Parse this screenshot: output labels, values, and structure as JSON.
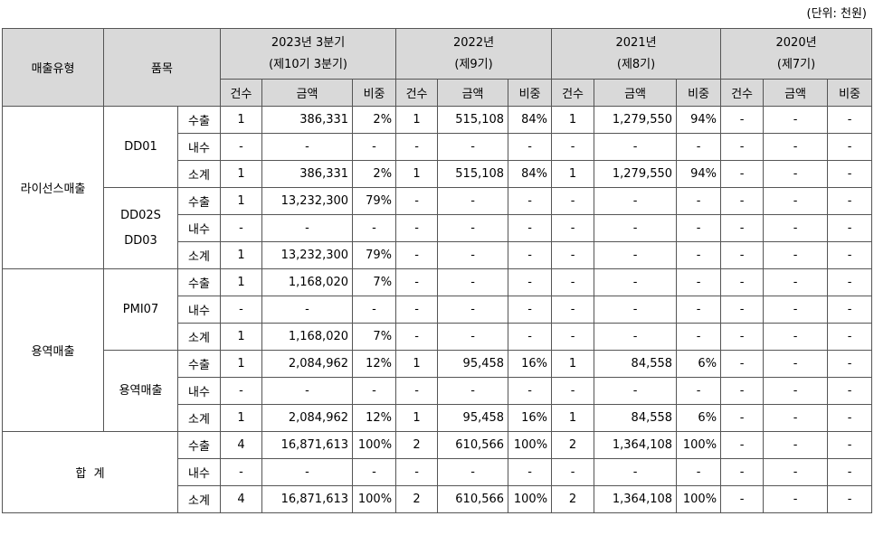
{
  "unit_label": "(단위: 천원)",
  "headers": {
    "sales_type": "매출유형",
    "product": "품목",
    "periods": [
      {
        "year": "2023년 3분기",
        "term": "(제10기 3분기)"
      },
      {
        "year": "2022년",
        "term": "(제9기)"
      },
      {
        "year": "2021년",
        "term": "(제8기)"
      },
      {
        "year": "2020년",
        "term": "(제7기)"
      }
    ],
    "sub": [
      "건수",
      "금액",
      "비중"
    ]
  },
  "groups": [
    {
      "type": "라이선스매출",
      "products": [
        {
          "name": [
            "DD01"
          ],
          "rows": [
            {
              "kind": "수출",
              "vals": [
                "1",
                "386,331",
                "2%",
                "1",
                "515,108",
                "84%",
                "1",
                "1,279,550",
                "94%",
                "-",
                "-",
                "-"
              ]
            },
            {
              "kind": "내수",
              "vals": [
                "-",
                "-",
                "-",
                "-",
                "-",
                "-",
                "-",
                "-",
                "-",
                "-",
                "-",
                "-"
              ]
            },
            {
              "kind": "소계",
              "vals": [
                "1",
                "386,331",
                "2%",
                "1",
                "515,108",
                "84%",
                "1",
                "1,279,550",
                "94%",
                "-",
                "-",
                "-"
              ]
            }
          ]
        },
        {
          "name": [
            "DD02S",
            "DD03"
          ],
          "rows": [
            {
              "kind": "수출",
              "vals": [
                "1",
                "13,232,300",
                "79%",
                "-",
                "-",
                "-",
                "-",
                "-",
                "-",
                "-",
                "-",
                "-"
              ]
            },
            {
              "kind": "내수",
              "vals": [
                "-",
                "-",
                "-",
                "-",
                "-",
                "-",
                "-",
                "-",
                "-",
                "-",
                "-",
                "-"
              ]
            },
            {
              "kind": "소계",
              "vals": [
                "1",
                "13,232,300",
                "79%",
                "-",
                "-",
                "-",
                "-",
                "-",
                "-",
                "-",
                "-",
                "-"
              ]
            }
          ]
        }
      ]
    },
    {
      "type": "용역매출",
      "products": [
        {
          "name": [
            "PMI07"
          ],
          "rows": [
            {
              "kind": "수출",
              "vals": [
                "1",
                "1,168,020",
                "7%",
                "-",
                "-",
                "-",
                "-",
                "-",
                "-",
                "-",
                "-",
                "-"
              ]
            },
            {
              "kind": "내수",
              "vals": [
                "-",
                "-",
                "-",
                "-",
                "-",
                "-",
                "-",
                "-",
                "-",
                "-",
                "-",
                "-"
              ]
            },
            {
              "kind": "소계",
              "vals": [
                "1",
                "1,168,020",
                "7%",
                "-",
                "-",
                "-",
                "-",
                "-",
                "-",
                "-",
                "-",
                "-"
              ]
            }
          ]
        },
        {
          "name": [
            "용역매출"
          ],
          "rows": [
            {
              "kind": "수출",
              "vals": [
                "1",
                "2,084,962",
                "12%",
                "1",
                "95,458",
                "16%",
                "1",
                "84,558",
                "6%",
                "-",
                "-",
                "-"
              ]
            },
            {
              "kind": "내수",
              "vals": [
                "-",
                "-",
                "-",
                "-",
                "-",
                "-",
                "-",
                "-",
                "-",
                "-",
                "-",
                "-"
              ]
            },
            {
              "kind": "소계",
              "vals": [
                "1",
                "2,084,962",
                "12%",
                "1",
                "95,458",
                "16%",
                "1",
                "84,558",
                "6%",
                "-",
                "-",
                "-"
              ]
            }
          ]
        }
      ]
    }
  ],
  "total": {
    "label": "합  계",
    "rows": [
      {
        "kind": "수출",
        "vals": [
          "4",
          "16,871,613",
          "100%",
          "2",
          "610,566",
          "100%",
          "2",
          "1,364,108",
          "100%",
          "-",
          "-",
          "-"
        ]
      },
      {
        "kind": "내수",
        "vals": [
          "-",
          "-",
          "-",
          "-",
          "-",
          "-",
          "-",
          "-",
          "-",
          "-",
          "-",
          "-"
        ]
      },
      {
        "kind": "소계",
        "vals": [
          "4",
          "16,871,613",
          "100%",
          "2",
          "610,566",
          "100%",
          "2",
          "1,364,108",
          "100%",
          "-",
          "-",
          "-"
        ]
      }
    ]
  }
}
